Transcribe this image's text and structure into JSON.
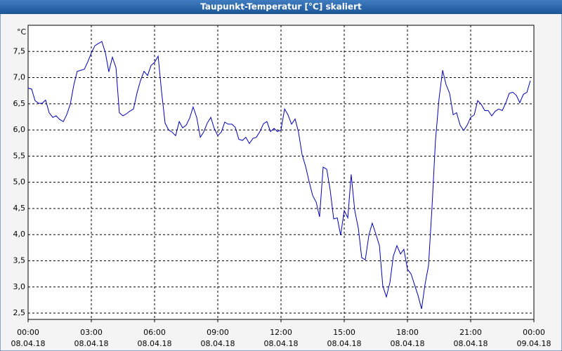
{
  "chart_data": {
    "type": "line",
    "title": "Taupunkt-Temperatur [°C] skaliert",
    "y_unit": "°C",
    "x": [
      0,
      0.17,
      0.33,
      0.5,
      0.67,
      0.83,
      1,
      1.17,
      1.33,
      1.5,
      1.67,
      1.83,
      2,
      2.17,
      2.33,
      2.5,
      2.67,
      2.83,
      3,
      3.17,
      3.33,
      3.5,
      3.67,
      3.83,
      4,
      4.17,
      4.33,
      4.5,
      4.67,
      4.83,
      5,
      5.17,
      5.33,
      5.5,
      5.67,
      5.83,
      6,
      6.17,
      6.33,
      6.5,
      6.67,
      6.83,
      7,
      7.17,
      7.33,
      7.5,
      7.67,
      7.83,
      8,
      8.17,
      8.33,
      8.5,
      8.67,
      8.83,
      9,
      9.17,
      9.33,
      9.5,
      9.67,
      9.83,
      10,
      10.17,
      10.33,
      10.5,
      10.67,
      10.83,
      11,
      11.17,
      11.33,
      11.5,
      11.67,
      11.83,
      12,
      12.17,
      12.33,
      12.5,
      12.67,
      12.83,
      13,
      13.17,
      13.33,
      13.5,
      13.67,
      13.83,
      14,
      14.17,
      14.33,
      14.5,
      14.67,
      14.83,
      15,
      15.17,
      15.33,
      15.5,
      15.67,
      15.83,
      16,
      16.17,
      16.33,
      16.5,
      16.67,
      16.83,
      17,
      17.17,
      17.33,
      17.5,
      17.67,
      17.83,
      18,
      18.17,
      18.33,
      18.5,
      18.67,
      18.83,
      19,
      19.17,
      19.33,
      19.5,
      19.67,
      19.83,
      20,
      20.17,
      20.33,
      20.5,
      20.67,
      20.83,
      21,
      21.17,
      21.33,
      21.5,
      21.67,
      21.83,
      22,
      22.17,
      22.33,
      22.5,
      22.67,
      22.83,
      23,
      23.17,
      23.33,
      23.5,
      23.67,
      23.83
    ],
    "series": [
      {
        "color": "#0000c0",
        "values": [
          6.8,
          6.78,
          6.56,
          6.51,
          6.51,
          6.57,
          6.33,
          6.24,
          6.27,
          6.2,
          6.16,
          6.29,
          6.49,
          6.86,
          7.12,
          7.14,
          7.16,
          7.3,
          7.47,
          7.61,
          7.65,
          7.69,
          7.47,
          7.11,
          7.39,
          7.19,
          6.33,
          6.27,
          6.31,
          6.36,
          6.4,
          6.71,
          6.94,
          7.12,
          7.04,
          7.23,
          7.29,
          7.41,
          6.74,
          6.13,
          6.0,
          5.96,
          5.89,
          6.16,
          6.04,
          6.09,
          6.23,
          6.44,
          6.24,
          5.86,
          5.96,
          6.13,
          6.24,
          6.03,
          5.89,
          5.96,
          6.15,
          6.11,
          6.11,
          6.05,
          5.82,
          5.8,
          5.86,
          5.74,
          5.84,
          5.86,
          5.97,
          6.12,
          6.16,
          5.97,
          6.03,
          5.97,
          6.0,
          6.4,
          6.29,
          6.11,
          6.21,
          5.96,
          5.53,
          5.3,
          5.02,
          4.75,
          4.62,
          4.34,
          5.29,
          5.25,
          4.86,
          4.3,
          4.32,
          3.99,
          4.46,
          4.32,
          5.15,
          4.46,
          4.12,
          3.56,
          3.52,
          3.99,
          4.22,
          4.01,
          3.79,
          3.02,
          2.81,
          3.09,
          3.59,
          3.79,
          3.63,
          3.72,
          3.34,
          3.25,
          3.05,
          2.84,
          2.58,
          3.04,
          3.41,
          4.56,
          5.8,
          6.6,
          7.14,
          6.87,
          6.7,
          6.29,
          6.33,
          6.09,
          5.99,
          6.09,
          6.24,
          6.29,
          6.56,
          6.49,
          6.37,
          6.37,
          6.27,
          6.36,
          6.4,
          6.37,
          6.52,
          6.7,
          6.72,
          6.66,
          6.52,
          6.68,
          6.72,
          6.94
        ]
      }
    ],
    "xlim": [
      0,
      24
    ],
    "xticks": [
      {
        "value": 0,
        "label": "00:00"
      },
      {
        "value": 3,
        "label": "03:00"
      },
      {
        "value": 6,
        "label": "06:00"
      },
      {
        "value": 9,
        "label": "09:00"
      },
      {
        "value": 12,
        "label": "12:00"
      },
      {
        "value": 15,
        "label": "15:00"
      },
      {
        "value": 18,
        "label": "18:00"
      },
      {
        "value": 21,
        "label": "21:00"
      },
      {
        "value": 24,
        "label": "00:00"
      }
    ],
    "xtick_dates": [
      "08.04.18",
      "08.04.18",
      "08.04.18",
      "08.04.18",
      "08.04.18",
      "08.04.18",
      "08.04.18",
      "08.04.18",
      "09.04.18"
    ],
    "ylim": [
      2.38,
      8.0
    ],
    "yticks": [
      {
        "value": 2.5,
        "label": "2,5"
      },
      {
        "value": 3,
        "label": "3,0"
      },
      {
        "value": 3.5,
        "label": "3,5"
      },
      {
        "value": 4,
        "label": "4,0"
      },
      {
        "value": 4.5,
        "label": "4,5"
      },
      {
        "value": 5,
        "label": "5,0"
      },
      {
        "value": 5.5,
        "label": "5,5"
      },
      {
        "value": 6,
        "label": "6,0"
      },
      {
        "value": 6.5,
        "label": "6,5"
      },
      {
        "value": 7,
        "label": "7,0"
      },
      {
        "value": 7.5,
        "label": "7,5"
      }
    ],
    "grid": true
  }
}
